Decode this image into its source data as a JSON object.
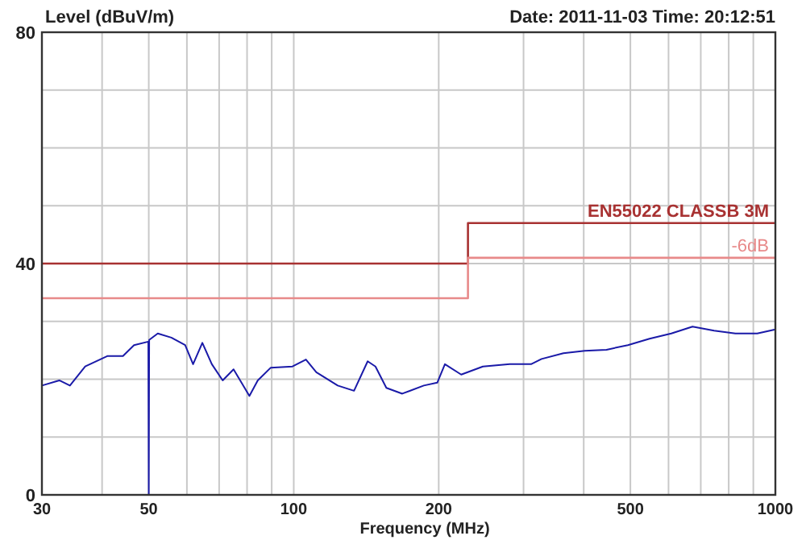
{
  "chart_data": {
    "type": "line",
    "title": "Date: 2011-11-03  Time: 20:12:51",
    "xlabel": "Frequency (MHz)",
    "ylabel": "Level (dBuV/m)",
    "log": "x",
    "grid": true,
    "xlim": [
      30,
      1000
    ],
    "ylim": [
      0,
      80
    ],
    "xticks": [
      30,
      {
        "value": 40,
        "label": null
      },
      50,
      {
        "value": 60,
        "label": null
      },
      {
        "value": 70,
        "label": null
      },
      {
        "value": 80,
        "label": null
      },
      {
        "value": 90,
        "label": null
      },
      100,
      200,
      {
        "value": 300,
        "label": null
      },
      {
        "value": 400,
        "label": null
      },
      500,
      {
        "value": 600,
        "label": null
      },
      {
        "value": 700,
        "label": null
      },
      {
        "value": 800,
        "label": null
      },
      {
        "value": 900,
        "label": null
      },
      1000
    ],
    "yticks": [
      0,
      {
        "value": 10,
        "label": null
      },
      {
        "value": 20,
        "label": null
      },
      {
        "value": 30,
        "label": null
      },
      40,
      {
        "value": 50,
        "label": null
      },
      {
        "value": 60,
        "label": null
      },
      {
        "value": 70,
        "label": null
      },
      80
    ],
    "series": [
      {
        "color": "#1a1aa8",
        "x": [
          30,
          32.6,
          34.3,
          36.9,
          41,
          44.2,
          46.6,
          49.9,
          50,
          50.1,
          52.2,
          55.7,
          59.5,
          61.8,
          64.6,
          67.6,
          71.2,
          75,
          80.9,
          84.2,
          89.6,
          99.4,
          106,
          111.4,
          123.4,
          133.4,
          142.4,
          147.8,
          155.7,
          168,
          186.2,
          198.6,
          206,
          222.7,
          247,
          281,
          311,
          327,
          363,
          402,
          446,
          494,
          548,
          608,
          673,
          746,
          826,
          917,
          1000
        ],
        "values": [
          18.9,
          19.8,
          18.9,
          22.2,
          24,
          24,
          25.9,
          26.5,
          0,
          26.8,
          27.9,
          27.2,
          25.9,
          22.6,
          26.3,
          22.6,
          19.8,
          21.7,
          17.1,
          19.8,
          22,
          22.2,
          23.4,
          21.2,
          18.9,
          18,
          23.1,
          22.2,
          18.5,
          17.5,
          18.9,
          19.4,
          22.6,
          20.8,
          22.2,
          22.6,
          22.6,
          23.5,
          24.5,
          24.9,
          25.1,
          25.9,
          27,
          27.9,
          29.1,
          28.4,
          27.9,
          27.9,
          28.6
        ]
      },
      {
        "name": "EN55022 CLASSB 3M",
        "color": "#a83232",
        "x": [
          30,
          230,
          230,
          1000
        ],
        "values": [
          40,
          40,
          47,
          47
        ]
      },
      {
        "name": "-6dB",
        "color": "#e88a8a",
        "x": [
          30,
          230,
          230,
          1000
        ],
        "values": [
          34,
          34,
          41,
          41
        ]
      }
    ]
  }
}
